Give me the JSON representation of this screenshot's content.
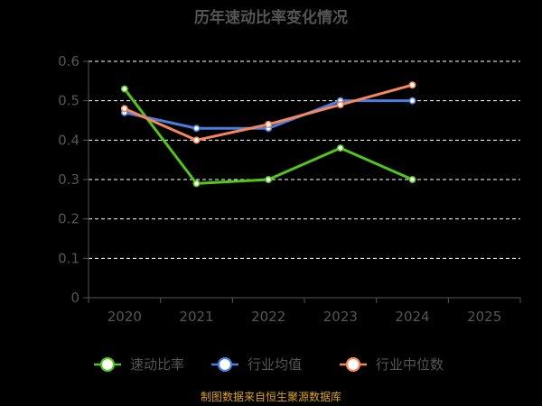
{
  "chart_data": {
    "type": "line",
    "title": "历年速动比率变化情况",
    "categories": [
      "2020",
      "2021",
      "2022",
      "2023",
      "2024",
      "2025"
    ],
    "y_ticks": [
      "0",
      "0.1",
      "0.2",
      "0.3",
      "0.4",
      "0.5",
      "0.6"
    ],
    "ylim": [
      0,
      0.6
    ],
    "grid": true,
    "legend_position": "bottom",
    "series": [
      {
        "name": "速动比率",
        "color": "#52c41a",
        "values": [
          0.53,
          0.29,
          0.3,
          0.38,
          0.3,
          null
        ]
      },
      {
        "name": "行业均值",
        "color": "#4a7ee0",
        "values": [
          0.47,
          0.43,
          0.43,
          0.5,
          0.5,
          null
        ]
      },
      {
        "name": "行业中位数",
        "color": "#f5875a",
        "values": [
          0.48,
          0.4,
          0.44,
          0.49,
          0.54,
          null
        ]
      }
    ],
    "source": "制图数据来自恒生聚源数据库"
  }
}
